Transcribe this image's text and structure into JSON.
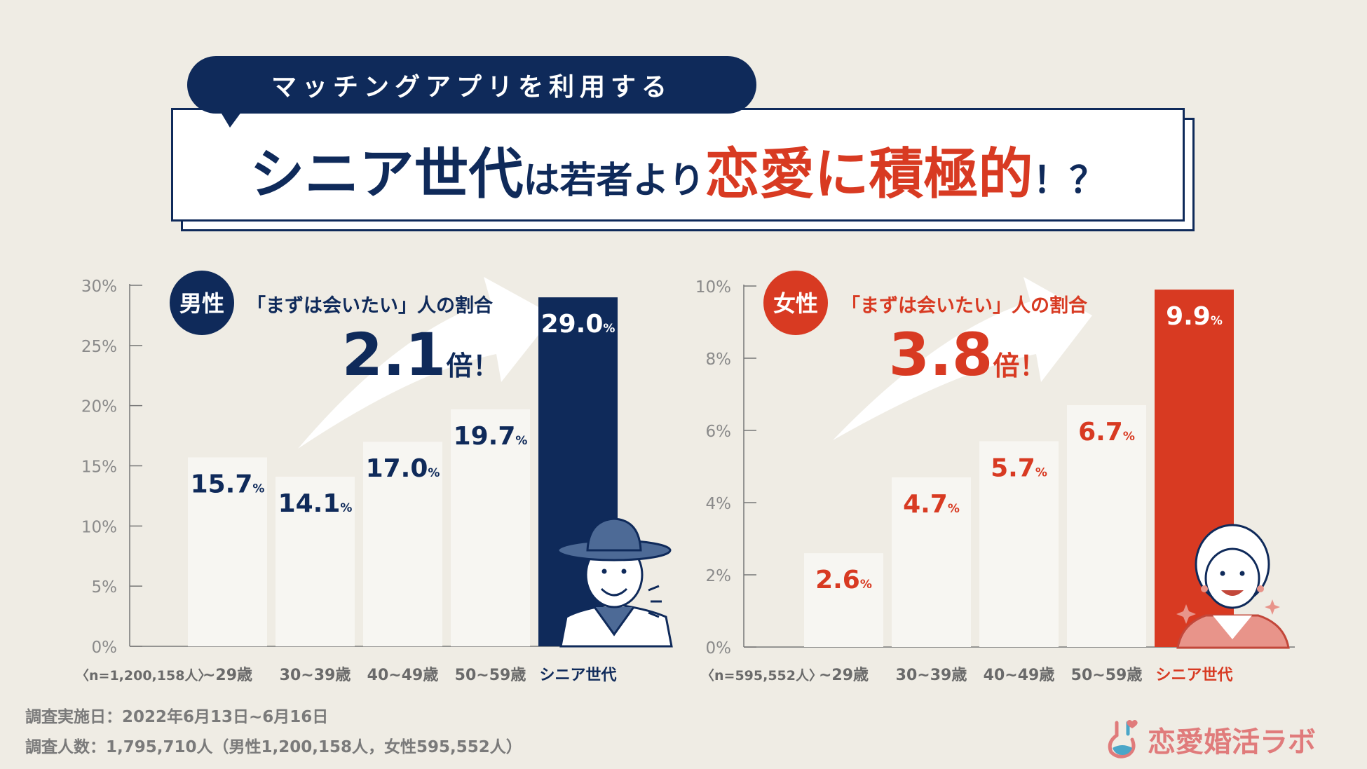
{
  "header": {
    "banner": "マッチングアプリを利用する",
    "part1": "シニア世代",
    "part2": "は若者より",
    "part3": "恋愛に積極的",
    "part4": "！？"
  },
  "colors": {
    "navy": "#0f2a5a",
    "red": "#d83a22",
    "bar_light": "#f7f6f2",
    "background": "#efece4"
  },
  "chart_data": [
    {
      "type": "bar",
      "title": "男性",
      "subtitle": "「まずは会いたい」人の割合",
      "multiplier": "2.1",
      "multiplier_suffix": "倍！",
      "categories": [
        "~29歳",
        "30~39歳",
        "40~49歳",
        "50~59歳",
        "シニア世代"
      ],
      "values": [
        15.7,
        14.1,
        17.0,
        19.7,
        29.0
      ],
      "value_labels": [
        "15.7",
        "14.1",
        "17.0",
        "19.7",
        "29.0"
      ],
      "unit": "%",
      "sample": "〈n=1,200,158人〉",
      "ylim": [
        0,
        30
      ],
      "yticks": [
        0,
        5,
        10,
        15,
        20,
        25,
        30
      ],
      "ytick_labels": [
        "0%",
        "5%",
        "10%",
        "15%",
        "20%",
        "25%",
        "30%"
      ],
      "highlight_index": 4,
      "accent": "#0f2a5a"
    },
    {
      "type": "bar",
      "title": "女性",
      "subtitle": "「まずは会いたい」人の割合",
      "multiplier": "3.8",
      "multiplier_suffix": "倍！",
      "categories": [
        "~29歳",
        "30~39歳",
        "40~49歳",
        "50~59歳",
        "シニア世代"
      ],
      "values": [
        2.6,
        4.7,
        5.7,
        6.7,
        9.9
      ],
      "value_labels": [
        "2.6",
        "4.7",
        "5.7",
        "6.7",
        "9.9"
      ],
      "unit": "%",
      "sample": "〈n=595,552人〉",
      "ylim": [
        0,
        10
      ],
      "yticks": [
        0,
        2,
        4,
        6,
        8,
        10
      ],
      "ytick_labels": [
        "0%",
        "2%",
        "4%",
        "6%",
        "8%",
        "10%"
      ],
      "highlight_index": 4,
      "accent": "#d83a22"
    }
  ],
  "footer": {
    "date": "調査実施日：2022年6月13日~6月16日",
    "count": "調査人数：1,795,710人（男性1,200,158人，女性595,552人）"
  },
  "logo": {
    "text": "恋愛婚活ラボ",
    "icon": "flask-heart-icon"
  }
}
